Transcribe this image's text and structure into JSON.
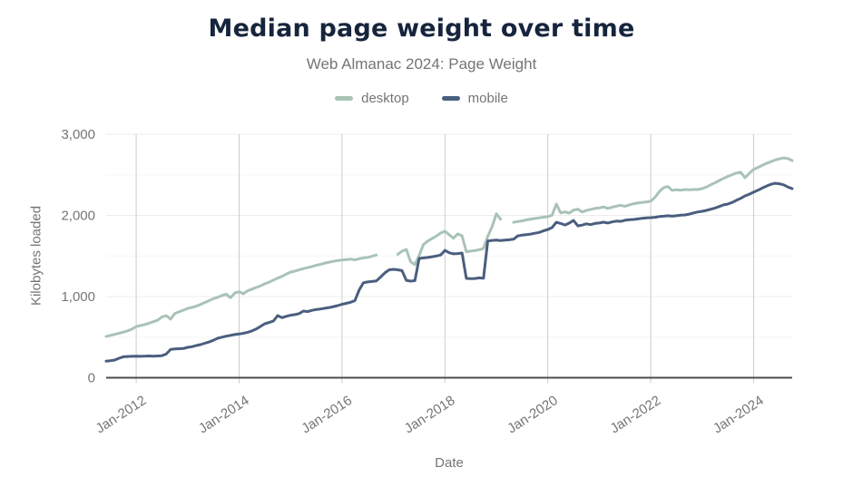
{
  "title": "Median page weight over time",
  "subtitle": "Web Almanac 2024: Page Weight",
  "colors": {
    "title_text": "#16243d",
    "muted_text": "#757575",
    "desktop_line": "#a9c3b6",
    "mobile_line": "#4a5e7e",
    "axis_line": "#4d4d4d",
    "v_gridline": "#cccccc",
    "h_gridline_major": "#ececec",
    "h_gridline_minor": "#f6f6f6"
  },
  "chart_data": {
    "type": "line",
    "title": "Median page weight over time",
    "subtitle": "Web Almanac 2024: Page Weight",
    "xlabel": "Date",
    "ylabel": "Kilobytes loaded",
    "legend_position": "top",
    "grid": true,
    "x_interval": "monthly",
    "x_start": "2011-06",
    "x_end": "2024-10",
    "x_ticks": [
      {
        "label": "Jan-2012",
        "month_index": 7
      },
      {
        "label": "Jan-2014",
        "month_index": 31
      },
      {
        "label": "Jan-2016",
        "month_index": 55
      },
      {
        "label": "Jan-2018",
        "month_index": 79
      },
      {
        "label": "Jan-2020",
        "month_index": 103
      },
      {
        "label": "Jan-2022",
        "month_index": 127
      },
      {
        "label": "Jan-2024",
        "month_index": 151
      }
    ],
    "y_ticks": [
      0,
      1000,
      2000,
      3000
    ],
    "y_tick_labels": [
      "0",
      "1,000",
      "2,000",
      "3,000"
    ],
    "ylim": [
      0,
      3000
    ],
    "series": [
      {
        "name": "desktop",
        "color": "#a9c3b6",
        "values": [
          510,
          522,
          535,
          548,
          562,
          578,
          598,
          630,
          642,
          656,
          672,
          690,
          708,
          748,
          765,
          722,
          790,
          812,
          832,
          854,
          866,
          882,
          902,
          926,
          950,
          974,
          990,
          1012,
          1030,
          985,
          1045,
          1058,
          1035,
          1072,
          1092,
          1112,
          1132,
          1156,
          1178,
          1202,
          1226,
          1248,
          1276,
          1300,
          1314,
          1328,
          1344,
          1356,
          1370,
          1384,
          1398,
          1412,
          1424,
          1434,
          1442,
          1450,
          1456,
          1462,
          1452,
          1466,
          1476,
          1482,
          1496,
          1512,
          null,
          null,
          null,
          null,
          1520,
          1560,
          1580,
          1430,
          1392,
          1505,
          1640,
          1684,
          1714,
          1744,
          1782,
          1805,
          1762,
          1718,
          1772,
          1748,
          1552,
          1560,
          1566,
          1576,
          1592,
          1742,
          1862,
          2020,
          1952,
          null,
          null,
          1915,
          1924,
          1932,
          1944,
          1954,
          1962,
          1970,
          1978,
          1984,
          2002,
          2140,
          2030,
          2044,
          2028,
          2066,
          2076,
          2042,
          2060,
          2074,
          2086,
          2092,
          2104,
          2086,
          2100,
          2114,
          2124,
          2112,
          2130,
          2144,
          2152,
          2160,
          2166,
          2174,
          2222,
          2292,
          2342,
          2356,
          2308,
          2316,
          2310,
          2318,
          2314,
          2320,
          2318,
          2330,
          2350,
          2376,
          2402,
          2430,
          2456,
          2480,
          2502,
          2522,
          2532,
          2464,
          2520,
          2566,
          2590,
          2616,
          2640,
          2662,
          2682,
          2696,
          2708,
          2700,
          2676
        ]
      },
      {
        "name": "mobile",
        "color": "#4a5e7e",
        "values": [
          205,
          210,
          218,
          240,
          258,
          262,
          264,
          266,
          264,
          266,
          268,
          266,
          268,
          272,
          292,
          348,
          355,
          358,
          360,
          374,
          382,
          395,
          408,
          425,
          440,
          462,
          486,
          500,
          512,
          522,
          532,
          538,
          548,
          560,
          576,
          600,
          632,
          665,
          680,
          698,
          765,
          740,
          756,
          770,
          778,
          790,
          821,
          815,
          830,
          840,
          847,
          856,
          865,
          876,
          888,
          905,
          916,
          930,
          950,
          1080,
          1170,
          1180,
          1186,
          1192,
          1240,
          1292,
          1330,
          1335,
          1330,
          1320,
          1200,
          1190,
          1196,
          1469,
          1476,
          1482,
          1490,
          1500,
          1512,
          1569,
          1540,
          1526,
          1530,
          1536,
          1223,
          1220,
          1222,
          1230,
          1225,
          1685,
          1692,
          1696,
          1690,
          1696,
          1700,
          1706,
          1748,
          1756,
          1762,
          1770,
          1780,
          1790,
          1810,
          1826,
          1850,
          1915,
          1900,
          1882,
          1905,
          1938,
          1870,
          1880,
          1896,
          1886,
          1900,
          1906,
          1916,
          1906,
          1920,
          1930,
          1926,
          1940,
          1946,
          1950,
          1956,
          1964,
          1970,
          1972,
          1976,
          1986,
          1990,
          1996,
          1990,
          1996,
          2002,
          2006,
          2016,
          2030,
          2042,
          2050,
          2062,
          2076,
          2090,
          2110,
          2130,
          2140,
          2160,
          2186,
          2210,
          2240,
          2262,
          2286,
          2310,
          2336,
          2360,
          2382,
          2396,
          2390,
          2376,
          2350,
          2330
        ]
      }
    ]
  }
}
